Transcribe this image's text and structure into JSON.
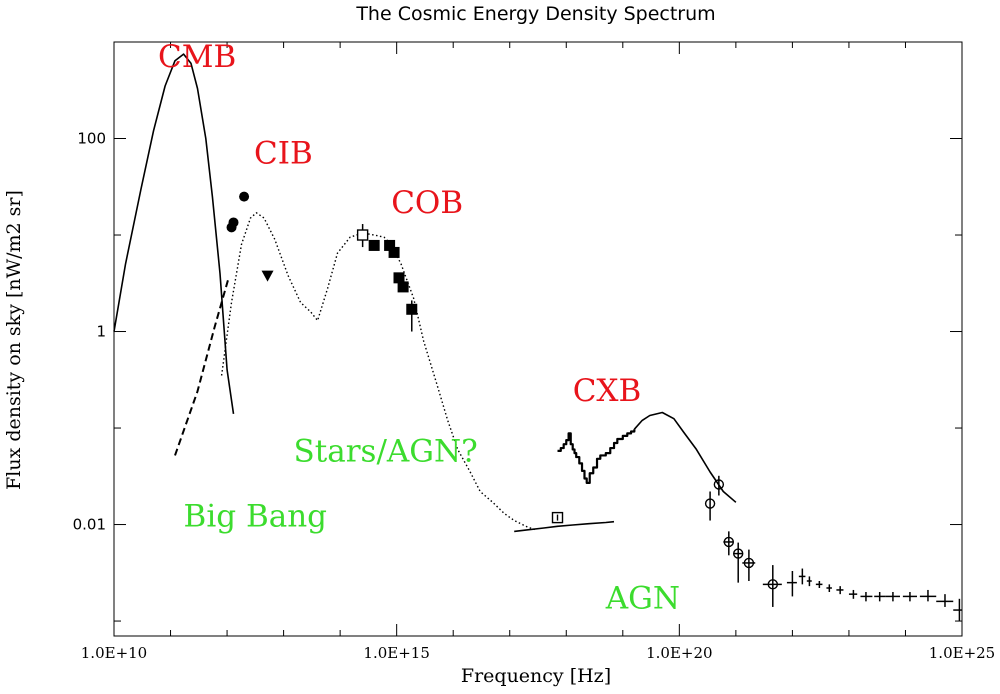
{
  "colors": {
    "red_label": "#e8141b",
    "green_label": "#3cdc2e",
    "ink": "#000000"
  },
  "chart_data": {
    "type": "line",
    "title": "The Cosmic Energy Density Spectrum",
    "xlabel": "Frequency [Hz]",
    "ylabel": "Flux density on sky [nW/m2 sr]",
    "xscale": "log",
    "yscale": "log",
    "xlim": [
      10000000000.0,
      1e+25
    ],
    "ylim": [
      0.0007,
      1000
    ],
    "x_ticks": [
      {
        "value": 10000000000.0,
        "label": "1.0E+10"
      },
      {
        "value": 1000000000000000.0,
        "label": "1.0E+15"
      },
      {
        "value": 1e+20,
        "label": "1.0E+20"
      },
      {
        "value": 1e+25,
        "label": "1.0E+25"
      }
    ],
    "y_ticks": [
      {
        "value": 0.01,
        "label": "0.01"
      },
      {
        "value": 1,
        "label": "1"
      },
      {
        "value": 100,
        "label": "100"
      }
    ],
    "grid": false,
    "annotations": [
      {
        "text": "CMB",
        "color": "red",
        "x": 60000000000.0,
        "y": 550
      },
      {
        "text": "CIB",
        "color": "red",
        "x": 3000000000000.0,
        "y": 55
      },
      {
        "text": "COB",
        "color": "red",
        "x": 800000000000000.0,
        "y": 17
      },
      {
        "text": "CXB",
        "color": "red",
        "x": 1.3e+18,
        "y": 0.19
      },
      {
        "text": "Stars/AGN?",
        "color": "green",
        "x": 15000000000000.0,
        "y": 0.045
      },
      {
        "text": "Big Bang",
        "color": "green",
        "x": 170000000000.0,
        "y": 0.0095
      },
      {
        "text": "AGN",
        "color": "green",
        "x": 5e+18,
        "y": 0.00135
      }
    ],
    "series": [
      {
        "style": "solid",
        "x": [
          10000000000.0,
          16000000000.0,
          30000000000.0,
          50000000000.0,
          80000000000.0,
          120000000000.0,
          170000000000.0,
          230000000000.0,
          300000000000.0,
          420000000000.0,
          550000000000.0,
          750000000000.0,
          1000000000000.0,
          1300000000000.0
        ],
        "values": [
          1.0,
          5,
          30,
          120,
          350,
          640,
          750,
          600,
          330,
          100,
          25,
          4,
          0.4,
          0.14
        ]
      },
      {
        "style": "dashed",
        "x": [
          120000000000.0,
          300000000000.0,
          600000000000.0,
          1050000000000.0
        ],
        "values": [
          0.052,
          0.24,
          1.1,
          3.5
        ]
      },
      {
        "style": "dotted",
        "x": [
          800000000000.0,
          1200000000000.0,
          1800000000000.0,
          2600000000000.0,
          3300000000000.0,
          4500000000000.0,
          7000000000000.0,
          12000000000000.0,
          20000000000000.0,
          30000000000000.0,
          40000000000000.0,
          60000000000000.0,
          90000000000000.0,
          150000000000000.0,
          250000000000000.0,
          400000000000000.0,
          600000000000000.0,
          800000000000000.0,
          1200000000000000.0,
          2000000000000000.0,
          3000000000000000.0,
          5000000000000000.0,
          8000000000000000.0,
          1.2e+16,
          2e+16,
          3e+16,
          5e+16,
          8e+16,
          1.2e+17,
          2e+17,
          2.6e+17,
          3e+17
        ],
        "values": [
          0.35,
          2,
          8,
          15,
          17,
          15,
          9,
          3.8,
          2.0,
          1.6,
          1.3,
          2.8,
          6.5,
          9.5,
          10.5,
          10,
          9.5,
          8,
          5,
          2.2,
          0.8,
          0.3,
          0.12,
          0.06,
          0.035,
          0.022,
          0.017,
          0.013,
          0.011,
          0.0095,
          0.009,
          0.0088
        ]
      },
      {
        "style": "solid",
        "x": [
          1.2e+17,
          2e+17,
          4e+17,
          7e+17,
          1.3e+18,
          2.5e+18,
          5e+18,
          7e+18
        ],
        "values": [
          0.0085,
          0.0088,
          0.0092,
          0.0096,
          0.0099,
          0.0102,
          0.0105,
          0.0107
        ]
      },
      {
        "style": "step",
        "x": [
          7e+17,
          8e+17,
          9e+17,
          1e+18,
          1.1e+18,
          1.2e+18,
          1.3e+18,
          1.4e+18,
          1.5e+18,
          1.7e+18,
          1.9e+18,
          2.1e+18,
          2.3e+18,
          2.6e+18,
          3e+18,
          3.5e+18,
          4e+18,
          5e+18,
          6e+18,
          7e+18,
          8e+18,
          1e+19,
          1.2e+19,
          1.4e+19,
          1.6e+19
        ],
        "values": [
          0.058,
          0.062,
          0.068,
          0.075,
          0.088,
          0.068,
          0.06,
          0.055,
          0.05,
          0.043,
          0.036,
          0.03,
          0.027,
          0.034,
          0.039,
          0.048,
          0.052,
          0.055,
          0.062,
          0.07,
          0.077,
          0.083,
          0.088,
          0.092,
          0.097
        ]
      },
      {
        "style": "solid",
        "x": [
          1.6e+19,
          2.2e+19,
          3e+19,
          5e+19,
          8e+19,
          1.2e+20,
          2e+20,
          3.5e+20,
          6e+20,
          1e+21
        ],
        "values": [
          0.097,
          0.12,
          0.135,
          0.145,
          0.125,
          0.09,
          0.06,
          0.035,
          0.022,
          0.017
        ]
      }
    ],
    "points": [
      {
        "marker": "circle-filled",
        "x": 1200000000000.0,
        "y": 12
      },
      {
        "marker": "circle-filled",
        "x": 1300000000000.0,
        "y": 13.5
      },
      {
        "marker": "circle-filled",
        "x": 2000000000000.0,
        "y": 25
      },
      {
        "marker": "triangle-down",
        "x": 5200000000000.0,
        "y": 3.8
      },
      {
        "marker": "square-open",
        "x": 250000000000000.0,
        "y": 10,
        "yerr": [
          7.5,
          13
        ]
      },
      {
        "marker": "square-filled",
        "x": 400000000000000.0,
        "y": 7.8
      },
      {
        "marker": "square-filled",
        "x": 750000000000000.0,
        "y": 7.8
      },
      {
        "marker": "square-filled",
        "x": 900000000000000.0,
        "y": 6.6
      },
      {
        "marker": "square-filled",
        "x": 1100000000000000.0,
        "y": 3.6
      },
      {
        "marker": "square-filled",
        "x": 1300000000000000.0,
        "y": 2.9
      },
      {
        "marker": "square-filled",
        "x": 1850000000000000.0,
        "y": 1.7,
        "yerr": [
          1.0,
          2.1
        ]
      },
      {
        "marker": "square-open-bar",
        "x": 7e+17,
        "y": 0.0118
      },
      {
        "marker": "circle-open",
        "x": 3.5e+20,
        "y": 0.0165,
        "yerr": [
          0.011,
          0.022
        ]
      },
      {
        "marker": "circle-open",
        "x": 5e+20,
        "y": 0.026,
        "yerr": [
          0.02,
          0.032
        ]
      },
      {
        "marker": "circle-open",
        "x": 7.5e+20,
        "y": 0.0066,
        "xerr": [
          6e+20,
          9e+20
        ],
        "yerr": [
          0.0048,
          0.0085
        ]
      },
      {
        "marker": "circle-open",
        "x": 1.1e+21,
        "y": 0.005,
        "xerr": [
          9e+20,
          1.3e+21
        ],
        "yerr": [
          0.0025,
          0.0065
        ]
      },
      {
        "marker": "circle-open",
        "x": 1.7e+21,
        "y": 0.004,
        "xerr": [
          1.3e+21,
          2.2e+21
        ],
        "yerr": [
          0.0026,
          0.0055
        ]
      },
      {
        "marker": "circle-open",
        "x": 4.5e+21,
        "y": 0.0024,
        "xerr": [
          3e+21,
          6.5e+21
        ],
        "yerr": [
          0.0014,
          0.0038
        ]
      },
      {
        "marker": "plus",
        "x": 1e+22,
        "y": 0.0025,
        "xerr": [
          8e+21,
          1.2e+22
        ],
        "yerr": [
          0.0018,
          0.0033
        ]
      },
      {
        "marker": "plus",
        "x": 1.5e+22,
        "y": 0.0029,
        "xerr": [
          1.3e+22,
          1.7e+22
        ],
        "yerr": [
          0.0024,
          0.0035
        ]
      },
      {
        "marker": "plus",
        "x": 2e+22,
        "y": 0.0026,
        "xerr": [
          1.8e+22,
          2.2e+22
        ],
        "yerr": [
          0.0023,
          0.0029
        ]
      },
      {
        "marker": "plus",
        "x": 3e+22,
        "y": 0.0024,
        "xerr": [
          2.6e+22,
          3.4e+22
        ],
        "yerr": [
          0.0022,
          0.0026
        ]
      },
      {
        "marker": "plus",
        "x": 4.5e+22,
        "y": 0.0022,
        "xerr": [
          4e+22,
          5e+22
        ],
        "yerr": [
          0.002,
          0.0024
        ]
      },
      {
        "marker": "plus",
        "x": 7e+22,
        "y": 0.0021,
        "xerr": [
          6e+22,
          8e+22
        ],
        "yerr": [
          0.0019,
          0.0023
        ]
      },
      {
        "marker": "plus",
        "x": 1.2e+23,
        "y": 0.0019,
        "xerr": [
          1e+23,
          1.4e+23
        ],
        "yerr": [
          0.0017,
          0.0021
        ]
      },
      {
        "marker": "plus",
        "x": 2e+23,
        "y": 0.0018,
        "xerr": [
          1.6e+23,
          2.6e+23
        ],
        "yerr": [
          0.0016,
          0.002
        ]
      },
      {
        "marker": "plus",
        "x": 3.5e+23,
        "y": 0.0018,
        "xerr": [
          2.8e+23,
          4.5e+23
        ],
        "yerr": [
          0.0016,
          0.002
        ]
      },
      {
        "marker": "plus",
        "x": 6e+23,
        "y": 0.0018,
        "xerr": [
          4.5e+23,
          8e+23
        ],
        "yerr": [
          0.0016,
          0.002
        ]
      },
      {
        "marker": "plus",
        "x": 1.2e+24,
        "y": 0.0018,
        "xerr": [
          9e+23,
          1.6e+24
        ],
        "yerr": [
          0.0016,
          0.002
        ]
      },
      {
        "marker": "plus",
        "x": 2.5e+24,
        "y": 0.0018,
        "xerr": [
          1.8e+24,
          3.5e+24
        ],
        "yerr": [
          0.0016,
          0.0021
        ]
      },
      {
        "marker": "plus",
        "x": 5e+24,
        "y": 0.0016,
        "xerr": [
          3.5e+24,
          7e+24
        ],
        "yerr": [
          0.0014,
          0.0019
        ]
      },
      {
        "marker": "plus",
        "x": 9e+24,
        "y": 0.0013,
        "xerr": [
          7e+24,
          1e+25
        ],
        "yerr": [
          0.001,
          0.0017
        ]
      }
    ]
  }
}
